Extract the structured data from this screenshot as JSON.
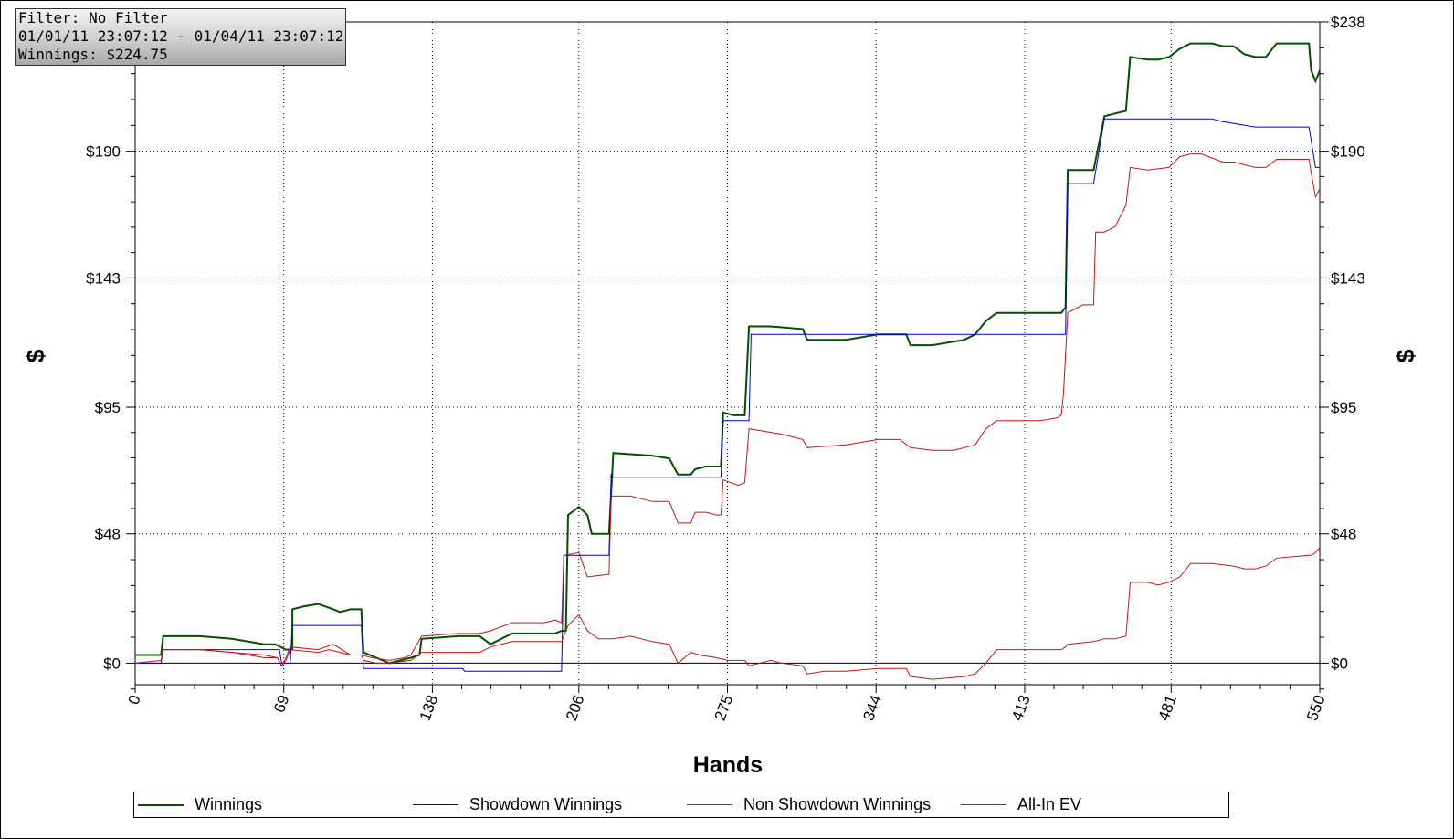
{
  "info_box": {
    "filter": "Filter: No Filter",
    "date_range": "01/01/11 23:07:12 - 01/04/11 23:07:12",
    "winnings": "Winnings: $224.75"
  },
  "chart_data": {
    "type": "line",
    "xlabel": "Hands",
    "ylabel": "$",
    "xlim": [
      0,
      550
    ],
    "ylim": [
      -8,
      238
    ],
    "x_ticks": [
      "0",
      "69",
      "138",
      "206",
      "275",
      "344",
      "413",
      "481",
      "550"
    ],
    "y_ticks": [
      "$0",
      "$48",
      "$95",
      "$143",
      "$190",
      "$238"
    ],
    "grid": true,
    "legend_position": "bottom",
    "series": [
      {
        "name": "Winnings",
        "color": "#005000",
        "points": [
          [
            0,
            3
          ],
          [
            12,
            3
          ],
          [
            13,
            10
          ],
          [
            30,
            10
          ],
          [
            45,
            9
          ],
          [
            60,
            7
          ],
          [
            65,
            7
          ],
          [
            70,
            5
          ],
          [
            73,
            5
          ],
          [
            73,
            20
          ],
          [
            78,
            21
          ],
          [
            85,
            22
          ],
          [
            92,
            20
          ],
          [
            95,
            19
          ],
          [
            100,
            20
          ],
          [
            105,
            20
          ],
          [
            106,
            4
          ],
          [
            112,
            2
          ],
          [
            118,
            0
          ],
          [
            128,
            2
          ],
          [
            132,
            3
          ],
          [
            133,
            9
          ],
          [
            150,
            10
          ],
          [
            160,
            10
          ],
          [
            165,
            7
          ],
          [
            175,
            11
          ],
          [
            195,
            11
          ],
          [
            198,
            12
          ],
          [
            200,
            12
          ],
          [
            201,
            55
          ],
          [
            206,
            58
          ],
          [
            210,
            55
          ],
          [
            212,
            48
          ],
          [
            220,
            48
          ],
          [
            222,
            78
          ],
          [
            240,
            77
          ],
          [
            248,
            76
          ],
          [
            252,
            70
          ],
          [
            258,
            70
          ],
          [
            260,
            72
          ],
          [
            265,
            73
          ],
          [
            272,
            73
          ],
          [
            273,
            93
          ],
          [
            278,
            92
          ],
          [
            283,
            92
          ],
          [
            285,
            125
          ],
          [
            295,
            125
          ],
          [
            310,
            124
          ],
          [
            312,
            120
          ],
          [
            330,
            120
          ],
          [
            345,
            122
          ],
          [
            358,
            122
          ],
          [
            360,
            118
          ],
          [
            370,
            118
          ],
          [
            385,
            120
          ],
          [
            390,
            122
          ],
          [
            395,
            127
          ],
          [
            400,
            130
          ],
          [
            430,
            130
          ],
          [
            432,
            132
          ],
          [
            433,
            183
          ],
          [
            445,
            183
          ],
          [
            450,
            203
          ],
          [
            455,
            204
          ],
          [
            460,
            205
          ],
          [
            462,
            225
          ],
          [
            470,
            224
          ],
          [
            475,
            224
          ],
          [
            480,
            225
          ],
          [
            485,
            228
          ],
          [
            490,
            230
          ],
          [
            500,
            230
          ],
          [
            505,
            229
          ],
          [
            510,
            229
          ],
          [
            515,
            226
          ],
          [
            520,
            225
          ],
          [
            525,
            225
          ],
          [
            530,
            230
          ],
          [
            545,
            230
          ],
          [
            546,
            220
          ],
          [
            548,
            216
          ],
          [
            550,
            220
          ]
        ]
      },
      {
        "name": "Showdown Winnings",
        "color": "#0000c8",
        "points": [
          [
            0,
            0
          ],
          [
            12,
            0
          ],
          [
            13,
            5
          ],
          [
            67,
            5
          ],
          [
            68,
            0
          ],
          [
            72,
            0
          ],
          [
            73,
            14
          ],
          [
            105,
            14
          ],
          [
            106,
            -2
          ],
          [
            152,
            -2
          ],
          [
            153,
            -3
          ],
          [
            198,
            -3
          ],
          [
            199,
            40
          ],
          [
            220,
            40
          ],
          [
            221,
            70
          ],
          [
            222,
            69
          ],
          [
            272,
            69
          ],
          [
            273,
            90
          ],
          [
            285,
            90
          ],
          [
            286,
            122
          ],
          [
            412,
            122
          ],
          [
            428,
            122
          ],
          [
            432,
            122
          ],
          [
            433,
            178
          ],
          [
            445,
            178
          ],
          [
            450,
            202
          ],
          [
            500,
            202
          ],
          [
            505,
            201
          ],
          [
            520,
            199
          ],
          [
            545,
            199
          ],
          [
            548,
            184
          ],
          [
            550,
            184
          ]
        ]
      },
      {
        "name": "Non Showdown Winnings",
        "color": "#c81414",
        "points": [
          [
            0,
            0
          ],
          [
            12,
            1
          ],
          [
            13,
            5
          ],
          [
            30,
            5
          ],
          [
            45,
            4
          ],
          [
            60,
            3
          ],
          [
            66,
            2
          ],
          [
            68,
            -1
          ],
          [
            70,
            1
          ],
          [
            72,
            5
          ],
          [
            85,
            4
          ],
          [
            90,
            5
          ],
          [
            100,
            3
          ],
          [
            105,
            3
          ],
          [
            110,
            2
          ],
          [
            118,
            1
          ],
          [
            125,
            2
          ],
          [
            128,
            3
          ],
          [
            133,
            10
          ],
          [
            150,
            11
          ],
          [
            160,
            11
          ],
          [
            165,
            12
          ],
          [
            175,
            15
          ],
          [
            190,
            15
          ],
          [
            195,
            16
          ],
          [
            198,
            15
          ],
          [
            199,
            40
          ],
          [
            206,
            41
          ],
          [
            210,
            32
          ],
          [
            220,
            33
          ],
          [
            221,
            62
          ],
          [
            230,
            62
          ],
          [
            240,
            60
          ],
          [
            248,
            60
          ],
          [
            252,
            52
          ],
          [
            258,
            52
          ],
          [
            260,
            56
          ],
          [
            265,
            56
          ],
          [
            270,
            55
          ],
          [
            272,
            55
          ],
          [
            273,
            68
          ],
          [
            280,
            66
          ],
          [
            283,
            67
          ],
          [
            285,
            87
          ],
          [
            300,
            85
          ],
          [
            310,
            83
          ],
          [
            312,
            80
          ],
          [
            330,
            81
          ],
          [
            345,
            83
          ],
          [
            355,
            83
          ],
          [
            360,
            80
          ],
          [
            370,
            79
          ],
          [
            380,
            79
          ],
          [
            390,
            81
          ],
          [
            395,
            87
          ],
          [
            400,
            90
          ],
          [
            420,
            90
          ],
          [
            428,
            91
          ],
          [
            430,
            92
          ],
          [
            431,
            100
          ],
          [
            433,
            130
          ],
          [
            440,
            133
          ],
          [
            445,
            133
          ],
          [
            446,
            160
          ],
          [
            450,
            160
          ],
          [
            455,
            162
          ],
          [
            460,
            170
          ],
          [
            462,
            184
          ],
          [
            470,
            183
          ],
          [
            480,
            184
          ],
          [
            485,
            188
          ],
          [
            490,
            189
          ],
          [
            495,
            189
          ],
          [
            505,
            186
          ],
          [
            510,
            186
          ],
          [
            520,
            184
          ],
          [
            525,
            184
          ],
          [
            530,
            187
          ],
          [
            545,
            187
          ],
          [
            546,
            182
          ],
          [
            548,
            173
          ],
          [
            550,
            176
          ]
        ]
      },
      {
        "name": "All-In EV",
        "color": "#c81414",
        "points": [
          [
            0,
            3
          ],
          [
            12,
            3
          ],
          [
            13,
            5
          ],
          [
            30,
            5
          ],
          [
            45,
            4
          ],
          [
            60,
            2
          ],
          [
            66,
            2
          ],
          [
            68,
            -1
          ],
          [
            70,
            2
          ],
          [
            72,
            6
          ],
          [
            85,
            5
          ],
          [
            92,
            7
          ],
          [
            100,
            3
          ],
          [
            105,
            3
          ],
          [
            106,
            1
          ],
          [
            112,
            0
          ],
          [
            118,
            0
          ],
          [
            128,
            1
          ],
          [
            133,
            4
          ],
          [
            150,
            4
          ],
          [
            160,
            4
          ],
          [
            165,
            6
          ],
          [
            175,
            8
          ],
          [
            195,
            8
          ],
          [
            198,
            8
          ],
          [
            201,
            14
          ],
          [
            206,
            18
          ],
          [
            210,
            12
          ],
          [
            215,
            9
          ],
          [
            222,
            9
          ],
          [
            230,
            10
          ],
          [
            240,
            8
          ],
          [
            248,
            7
          ],
          [
            252,
            0
          ],
          [
            258,
            4
          ],
          [
            262,
            3
          ],
          [
            270,
            2
          ],
          [
            275,
            1
          ],
          [
            283,
            1
          ],
          [
            285,
            -1
          ],
          [
            295,
            1
          ],
          [
            300,
            0
          ],
          [
            310,
            -1
          ],
          [
            312,
            -4
          ],
          [
            320,
            -3
          ],
          [
            330,
            -3
          ],
          [
            345,
            -2
          ],
          [
            358,
            -2
          ],
          [
            360,
            -5
          ],
          [
            370,
            -6
          ],
          [
            385,
            -5
          ],
          [
            390,
            -4
          ],
          [
            395,
            0
          ],
          [
            400,
            5
          ],
          [
            430,
            5
          ],
          [
            432,
            6
          ],
          [
            433,
            7
          ],
          [
            445,
            8
          ],
          [
            450,
            9
          ],
          [
            455,
            9
          ],
          [
            460,
            10
          ],
          [
            462,
            30
          ],
          [
            470,
            30
          ],
          [
            475,
            29
          ],
          [
            480,
            30
          ],
          [
            485,
            32
          ],
          [
            490,
            37
          ],
          [
            500,
            37
          ],
          [
            510,
            36
          ],
          [
            515,
            35
          ],
          [
            520,
            35
          ],
          [
            525,
            36
          ],
          [
            530,
            39
          ],
          [
            545,
            40
          ],
          [
            546,
            40
          ],
          [
            548,
            41
          ],
          [
            550,
            43
          ]
        ]
      }
    ]
  }
}
